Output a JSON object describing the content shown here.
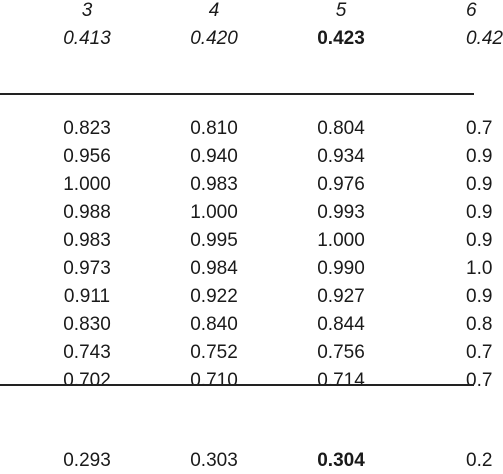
{
  "header": {
    "columns": [
      "3",
      "4",
      "5",
      "6"
    ],
    "values": [
      "0.413",
      "0.420",
      "0.423",
      "0.42"
    ],
    "bold_index": 2
  },
  "rows": [
    [
      "0.823",
      "0.810",
      "0.804",
      "0.7"
    ],
    [
      "0.956",
      "0.940",
      "0.934",
      "0.9"
    ],
    [
      "1.000",
      "0.983",
      "0.976",
      "0.9"
    ],
    [
      "0.988",
      "1.000",
      "0.993",
      "0.9"
    ],
    [
      "0.983",
      "0.995",
      "1.000",
      "0.9"
    ],
    [
      "0.973",
      "0.984",
      "0.990",
      "1.0"
    ],
    [
      "0.911",
      "0.922",
      "0.927",
      "0.9"
    ],
    [
      "0.830",
      "0.840",
      "0.844",
      "0.8"
    ],
    [
      "0.743",
      "0.752",
      "0.756",
      "0.7"
    ],
    [
      "0.702",
      "0.710",
      "0.714",
      "0.7"
    ]
  ],
  "footer": {
    "values": [
      "0.293",
      "0.303",
      "0.304",
      "0.2"
    ],
    "bold_index": 2
  }
}
